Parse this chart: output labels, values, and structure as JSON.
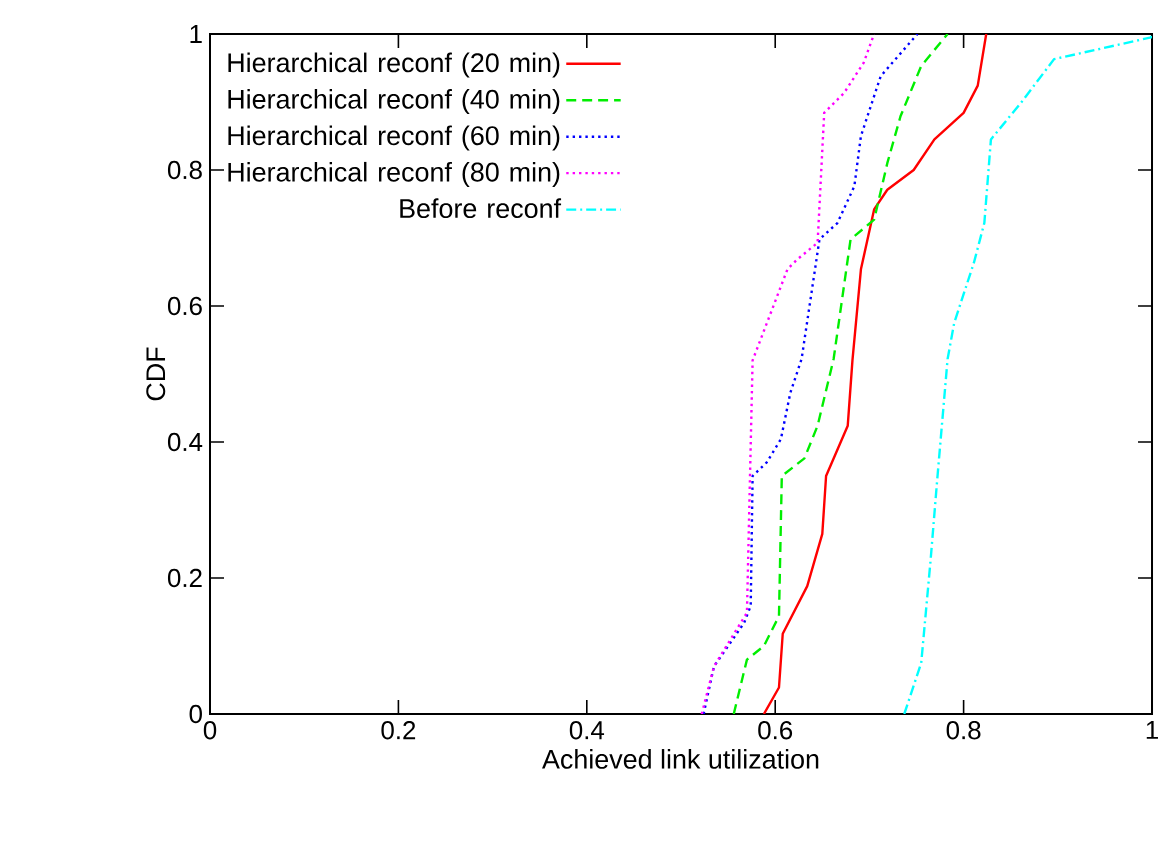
{
  "chart_data": {
    "type": "line",
    "xlabel": "Achieved link utilization",
    "ylabel": "CDF",
    "xlim": [
      0,
      1
    ],
    "ylim": [
      0,
      1
    ],
    "xticks": [
      0,
      0.2,
      0.4,
      0.6,
      0.8,
      1
    ],
    "yticks": [
      0,
      0.2,
      0.4,
      0.6,
      0.8,
      1
    ],
    "legend": "top left",
    "series": [
      {
        "name": "Hierarchical reconf (20 min)",
        "color": "#ff0000",
        "line_style": "solid",
        "x": [
          0.588,
          0.604,
          0.608,
          0.634,
          0.65,
          0.654,
          0.677,
          0.682,
          0.691,
          0.705,
          0.719,
          0.747,
          0.769,
          0.8,
          0.815,
          0.824
        ],
        "values": [
          0,
          0.039,
          0.118,
          0.188,
          0.265,
          0.35,
          0.424,
          0.52,
          0.654,
          0.742,
          0.771,
          0.8,
          0.845,
          0.884,
          0.924,
          1
        ]
      },
      {
        "name": "Hierarchical reconf (40 min)",
        "color": "#00ee00",
        "line_style": "dashed",
        "x": [
          0.556,
          0.57,
          0.588,
          0.604,
          0.607,
          0.631,
          0.645,
          0.662,
          0.68,
          0.705,
          0.719,
          0.733,
          0.755,
          0.783
        ],
        "values": [
          0,
          0.08,
          0.1,
          0.144,
          0.35,
          0.376,
          0.424,
          0.522,
          0.698,
          0.727,
          0.81,
          0.879,
          0.953,
          1
        ]
      },
      {
        "name": "Hierarchical reconf (60 min)",
        "color": "#0000ff",
        "line_style": "dotted",
        "x": [
          0.524,
          0.535,
          0.567,
          0.574,
          0.576,
          0.591,
          0.606,
          0.616,
          0.628,
          0.647,
          0.666,
          0.684,
          0.691,
          0.712,
          0.751
        ],
        "values": [
          0,
          0.07,
          0.134,
          0.159,
          0.35,
          0.37,
          0.404,
          0.472,
          0.522,
          0.698,
          0.722,
          0.776,
          0.85,
          0.938,
          1
        ]
      },
      {
        "name": "Hierarchical reconf (80 min)",
        "color": "#ff00ff",
        "line_style": "dotted",
        "x": [
          0.522,
          0.535,
          0.57,
          0.576,
          0.613,
          0.623,
          0.645,
          0.652,
          0.673,
          0.694,
          0.705
        ],
        "values": [
          0,
          0.07,
          0.149,
          0.52,
          0.654,
          0.668,
          0.693,
          0.884,
          0.913,
          0.958,
          1
        ]
      },
      {
        "name": "Before reconf",
        "color": "#00ffff",
        "line_style": "dashdot",
        "x": [
          0.737,
          0.755,
          0.765,
          0.772,
          0.783,
          0.79,
          0.811,
          0.822,
          0.829,
          0.861,
          0.896,
          0.999,
          1
        ],
        "values": [
          0,
          0.075,
          0.227,
          0.345,
          0.522,
          0.575,
          0.664,
          0.722,
          0.845,
          0.899,
          0.963,
          0.995,
          1
        ]
      }
    ]
  }
}
